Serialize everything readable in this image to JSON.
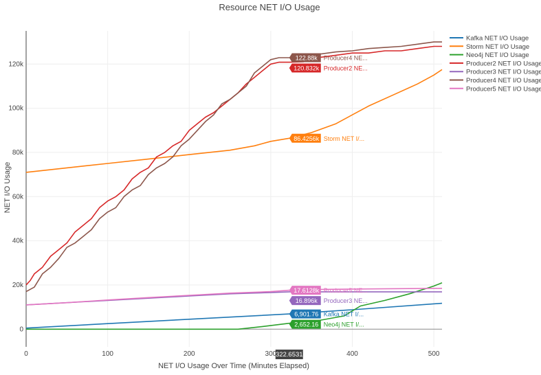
{
  "chart_data": {
    "type": "line",
    "title": "Resource NET I/O Usage",
    "xlabel": "NET I/O Usage Over Time (Minutes Elapsed)",
    "ylabel": "NET I/O Usage",
    "xlim": [
      0,
      510
    ],
    "ylim": [
      -8000,
      135000
    ],
    "x_ticks": [
      0,
      100,
      200,
      300,
      400,
      500
    ],
    "y_ticks": [
      0,
      20000,
      40000,
      60000,
      80000,
      100000,
      120000
    ],
    "y_tick_labels": [
      "0",
      "20k",
      "40k",
      "60k",
      "80k",
      "100k",
      "120k"
    ],
    "grid": true,
    "legend_position": "top-right",
    "hover": {
      "x_value": 322.6531,
      "x_label": "322.6531",
      "labels": [
        {
          "series": "Producer4 NET I/O Usage",
          "value_text": "122.88k",
          "name_text": "Producer4 NE...",
          "y": 122880
        },
        {
          "series": "Producer2 NET I/O Usage",
          "value_text": "120.832k",
          "name_text": "Producer2 NE...",
          "y": 120832
        },
        {
          "series": "Storm NET I/O Usage",
          "value_text": "86.4256k",
          "name_text": "Storm NET I/...",
          "y": 86425.6
        },
        {
          "series": "Producer5 NET I/O Usage",
          "value_text": "17.6128k",
          "name_text": "Producer5 NE...",
          "y": 17612.8
        },
        {
          "series": "Producer3 NET I/O Usage",
          "value_text": "16.896k",
          "name_text": "Producer3 NE...",
          "y": 16896
        },
        {
          "series": "Kafka NET I/O Usage",
          "value_text": "6,901.76",
          "name_text": "Kafka NET I/...",
          "y": 6901.76
        },
        {
          "series": "Neo4j NET I/O Usage",
          "value_text": "2,652.16",
          "name_text": "Neo4j NET I/...",
          "y": 2652.16
        }
      ]
    },
    "series": [
      {
        "name": "Kafka NET I/O Usage",
        "color": "#1f77b4",
        "x": [
          0,
          100,
          200,
          322.65,
          400,
          510
        ],
        "y": [
          500,
          2500,
          4500,
          6901.76,
          8800,
          11700
        ]
      },
      {
        "name": "Storm NET I/O Usage",
        "color": "#ff7f0e",
        "x": [
          0,
          50,
          100,
          150,
          200,
          250,
          280,
          300,
          322.65,
          350,
          380,
          400,
          420,
          450,
          480,
          500,
          510
        ],
        "y": [
          71000,
          73000,
          75000,
          77000,
          79000,
          81000,
          83000,
          85000,
          86425.6,
          89000,
          93000,
          97000,
          101000,
          106000,
          111000,
          115000,
          117500
        ]
      },
      {
        "name": "Neo4j NET I/O Usage",
        "color": "#2ca02c",
        "x": [
          0,
          100,
          200,
          260,
          290,
          322.65,
          360,
          390,
          410,
          440,
          470,
          500,
          510
        ],
        "y": [
          0,
          0,
          0,
          0,
          1200,
          2652.16,
          4000,
          6000,
          10500,
          13000,
          16000,
          19500,
          21000
        ]
      },
      {
        "name": "Producer2 NET I/O Usage",
        "color": "#d62728",
        "x": [
          0,
          5,
          10,
          20,
          30,
          40,
          50,
          60,
          70,
          80,
          90,
          100,
          110,
          120,
          130,
          140,
          150,
          160,
          170,
          180,
          190,
          200,
          210,
          220,
          230,
          240,
          250,
          260,
          270,
          280,
          290,
          300,
          310,
          322.65,
          340,
          360,
          380,
          400,
          420,
          440,
          460,
          480,
          500,
          510
        ],
        "y": [
          20000,
          22000,
          25000,
          28000,
          33000,
          36000,
          39000,
          44000,
          47000,
          50000,
          55000,
          58000,
          60000,
          63000,
          68000,
          71000,
          73000,
          78000,
          80000,
          83000,
          85000,
          90000,
          93000,
          96000,
          98000,
          101000,
          104000,
          107000,
          111000,
          114000,
          117000,
          120000,
          120832,
          120832,
          121000,
          123000,
          124000,
          125000,
          125000,
          126000,
          126000,
          127000,
          128000,
          128000
        ]
      },
      {
        "name": "Producer3 NET I/O Usage",
        "color": "#9467bd",
        "x": [
          0,
          50,
          100,
          150,
          200,
          250,
          300,
          322.65,
          360,
          420,
          480,
          510
        ],
        "y": [
          11000,
          12000,
          13000,
          14000,
          15000,
          16000,
          16600,
          16896,
          16896,
          16896,
          16896,
          16896
        ]
      },
      {
        "name": "Producer4 NET I/O Usage",
        "color": "#8c564b",
        "x": [
          0,
          10,
          20,
          30,
          40,
          50,
          60,
          70,
          80,
          90,
          100,
          110,
          120,
          130,
          140,
          150,
          160,
          170,
          180,
          190,
          200,
          210,
          220,
          230,
          240,
          250,
          260,
          270,
          280,
          290,
          300,
          310,
          322.65,
          340,
          360,
          380,
          400,
          420,
          440,
          460,
          480,
          500,
          510
        ],
        "y": [
          17000,
          19000,
          25000,
          28000,
          32000,
          37000,
          39000,
          42000,
          45000,
          50000,
          53000,
          55000,
          60000,
          63000,
          65000,
          70000,
          73000,
          75000,
          78000,
          83000,
          86000,
          90000,
          94000,
          97000,
          102000,
          104000,
          107000,
          110000,
          116000,
          119000,
          122000,
          122880,
          122880,
          123500,
          124500,
          125500,
          126000,
          127000,
          127500,
          128000,
          129000,
          130000,
          130000
        ]
      },
      {
        "name": "Producer5 NET I/O Usage",
        "color": "#e377c2",
        "x": [
          0,
          50,
          100,
          150,
          200,
          250,
          300,
          322.65,
          360,
          420,
          480,
          510
        ],
        "y": [
          11000,
          12000,
          13200,
          14300,
          15300,
          16300,
          17000,
          17612.8,
          18000,
          18200,
          18400,
          18500
        ]
      }
    ]
  }
}
